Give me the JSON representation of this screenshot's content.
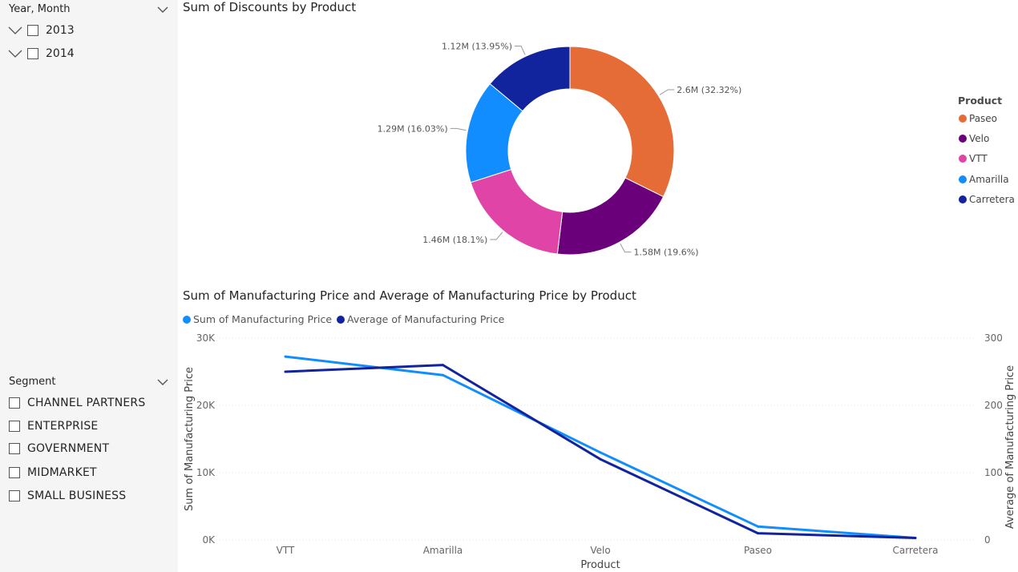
{
  "slicer_year": {
    "header": "Year, Month",
    "items": [
      {
        "label": "2013"
      },
      {
        "label": "2014"
      }
    ]
  },
  "slicer_segment": {
    "header": "Segment",
    "items": [
      {
        "label": "CHANNEL PARTNERS"
      },
      {
        "label": "ENTERPRISE"
      },
      {
        "label": "GOVERNMENT"
      },
      {
        "label": "MIDMARKET"
      },
      {
        "label": "SMALL BUSINESS"
      }
    ]
  },
  "donut": {
    "title": "Sum of Discounts by Product",
    "legend_title": "Product",
    "legend": [
      {
        "label": "Paseo",
        "color": "#E66C37"
      },
      {
        "label": "Velo",
        "color": "#6B007B"
      },
      {
        "label": "VTT",
        "color": "#E044A7"
      },
      {
        "label": "Amarilla",
        "color": "#118DFF"
      },
      {
        "label": "Carretera",
        "color": "#12239E"
      }
    ],
    "labels": [
      "2.6M (32.32%)",
      "1.58M (19.6%)",
      "1.46M (18.1%)",
      "1.29M (16.03%)",
      "1.12M (13.95%)"
    ]
  },
  "line": {
    "title": "Sum of Manufacturing Price and Average of Manufacturing Price by Product",
    "legend": [
      {
        "label": "Sum of Manufacturing Price",
        "color": "#118DFF"
      },
      {
        "label": "Average of Manufacturing Price",
        "color": "#12239E"
      }
    ]
  },
  "chart_data": [
    {
      "type": "pie",
      "title": "Sum of Discounts by Product",
      "categories": [
        "Paseo",
        "Velo",
        "VTT",
        "Amarilla",
        "Carretera"
      ],
      "values": [
        2.6,
        1.58,
        1.46,
        1.29,
        1.12
      ],
      "value_unit": "M",
      "percents": [
        32.32,
        19.6,
        18.1,
        16.03,
        13.95
      ],
      "colors": [
        "#E66C37",
        "#6B007B",
        "#E044A7",
        "#118DFF",
        "#12239E"
      ],
      "donut": true,
      "legend_title": "Product",
      "legend_position": "right"
    },
    {
      "type": "line",
      "title": "Sum of Manufacturing Price and Average of Manufacturing Price by Product",
      "categories": [
        "VTT",
        "Amarilla",
        "Velo",
        "Paseo",
        "Carretera"
      ],
      "xlabel": "Product",
      "ylabel": "Sum of Manufacturing Price",
      "y2label": "Average of Manufacturing Price",
      "ylim": [
        0,
        30000
      ],
      "y2lim": [
        0,
        300
      ],
      "y_ticks": [
        "0K",
        "10K",
        "20K",
        "30K"
      ],
      "y2_ticks": [
        "0",
        "100",
        "200",
        "300"
      ],
      "legend_position": "top-left",
      "grid": true,
      "series": [
        {
          "name": "Sum of Manufacturing Price",
          "axis": "left",
          "color": "#118DFF",
          "values": [
            27250,
            24500,
            13000,
            2000,
            300
          ]
        },
        {
          "name": "Average of Manufacturing Price",
          "axis": "right",
          "color": "#12239E",
          "values": [
            250,
            260,
            120,
            10,
            3
          ]
        }
      ]
    }
  ]
}
